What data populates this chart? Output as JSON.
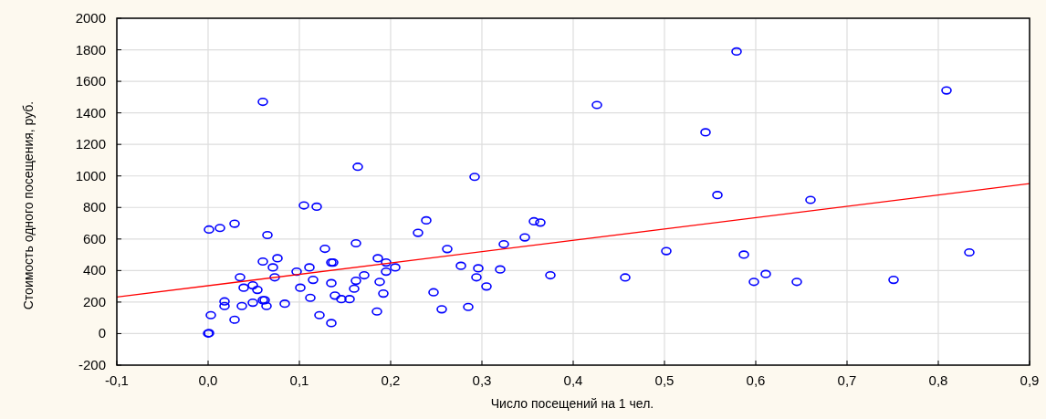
{
  "chart_data": {
    "type": "scatter",
    "xlabel": "Число посещений на 1 чел.",
    "ylabel": "Стоимость одного посещения, руб.",
    "xlim": [
      -0.1,
      0.9
    ],
    "xticks": [
      {
        "value": -0.1,
        "label": "-0,1"
      },
      {
        "value": 0,
        "label": "0,0"
      },
      {
        "value": 0.1,
        "label": "0,1"
      },
      {
        "value": 0.2,
        "label": "0,2"
      },
      {
        "value": 0.3,
        "label": "0,3"
      },
      {
        "value": 0.4,
        "label": "0,4"
      },
      {
        "value": 0.5,
        "label": "0,5"
      },
      {
        "value": 0.6,
        "label": "0,6"
      },
      {
        "value": 0.7,
        "label": "0,7"
      },
      {
        "value": 0.8,
        "label": "0,8"
      },
      {
        "value": 0.9,
        "label": "0,9"
      }
    ],
    "ylim": [
      -200,
      2000
    ],
    "yticks": [
      -200,
      0,
      200,
      400,
      600,
      800,
      1000,
      1200,
      1400,
      1600,
      1800,
      2000
    ],
    "grid": true,
    "marker": "circle",
    "series": [
      {
        "color": "#0000ff",
        "x": [
          0.0,
          0.001,
          0.003,
          0.001,
          0.013,
          0.029,
          0.029,
          0.018,
          0.018,
          0.035,
          0.037,
          0.039,
          0.049,
          0.054,
          0.049,
          0.06,
          0.062,
          0.064,
          0.084,
          0.06,
          0.06,
          0.065,
          0.076,
          0.071,
          0.073,
          0.097,
          0.101,
          0.105,
          0.111,
          0.112,
          0.115,
          0.119,
          0.122,
          0.128,
          0.135,
          0.137,
          0.135,
          0.135,
          0.139,
          0.146,
          0.155,
          0.16,
          0.162,
          0.162,
          0.164,
          0.171,
          0.185,
          0.186,
          0.188,
          0.192,
          0.195,
          0.195,
          0.205,
          0.23,
          0.239,
          0.247,
          0.256,
          0.262,
          0.277,
          0.285,
          0.292,
          0.294,
          0.296,
          0.305,
          0.32,
          0.324,
          0.347,
          0.357,
          0.364,
          0.375,
          0.426,
          0.457,
          0.502,
          0.545,
          0.558,
          0.579,
          0.587,
          0.598,
          0.611,
          0.645,
          0.66,
          0.751,
          0.809,
          0.834
        ],
        "values": [
          1,
          3,
          117,
          660,
          670,
          697,
          88,
          204,
          175,
          357,
          175,
          291,
          306,
          277,
          196,
          212,
          212,
          175,
          190,
          1470,
          457,
          625,
          478,
          420,
          357,
          393,
          291,
          813,
          420,
          227,
          341,
          805,
          117,
          538,
          451,
          451,
          320,
          67,
          241,
          219,
          219,
          285,
          335,
          573,
          1058,
          370,
          140,
          478,
          328,
          254,
          451,
          393,
          420,
          639,
          718,
          262,
          154,
          536,
          430,
          169,
          994,
          357,
          414,
          299,
          407,
          567,
          610,
          712,
          704,
          370,
          1450,
          356,
          523,
          1277,
          879,
          1789,
          501,
          328,
          378,
          328,
          848,
          341,
          1542,
          515
        ]
      },
      {
        "type": "line",
        "color": "#ff0000",
        "marker": "none",
        "x": [
          -0.1,
          0.9
        ],
        "values": [
          232,
          951
        ]
      }
    ]
  }
}
